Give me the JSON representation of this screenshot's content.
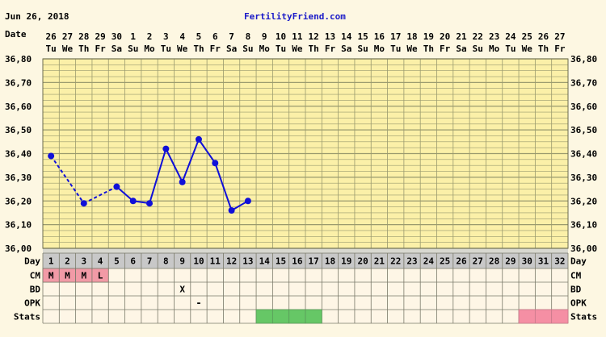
{
  "header": {
    "date": "Jun 26, 2018",
    "brand": "FertilityFriend.com"
  },
  "row_labels": {
    "date": "Date",
    "day": "Day",
    "cm": "CM",
    "bd": "BD",
    "opk": "OPK",
    "stats": "Stats"
  },
  "colors": {
    "background": "#fdf7e2",
    "chart_fill": "#fbf0a8",
    "grid_line": "#9a9a6e",
    "curve": "#1010d8",
    "cm_fill": "#f29aa6",
    "stats_green": "#66c766",
    "stats_pink": "#f58fa4",
    "day_row_fill": "#c8c8c8",
    "lower_rows_fill": "#fef6e6",
    "brand_color": "#1a1ac8"
  },
  "chart_data": {
    "type": "line",
    "y_ticks": [
      "36,80",
      "36,70",
      "36,60",
      "36,50",
      "36,40",
      "36,30",
      "36,20",
      "36,10",
      "36,00"
    ],
    "ylim": [
      36.0,
      36.8
    ],
    "dates": [
      "26",
      "27",
      "28",
      "29",
      "30",
      "1",
      "2",
      "3",
      "4",
      "5",
      "6",
      "7",
      "8",
      "9",
      "10",
      "11",
      "12",
      "13",
      "14",
      "15",
      "16",
      "17",
      "18",
      "19",
      "20",
      "21",
      "22",
      "23",
      "24",
      "25",
      "26",
      "27"
    ],
    "weekdays": [
      "Tu",
      "We",
      "Th",
      "Fr",
      "Sa",
      "Su",
      "Mo",
      "Tu",
      "We",
      "Th",
      "Fr",
      "Sa",
      "Su",
      "Mo",
      "Tu",
      "We",
      "Th",
      "Fr",
      "Sa",
      "Su",
      "Mo",
      "Tu",
      "We",
      "Th",
      "Fr",
      "Sa",
      "Su",
      "Mo",
      "Tu",
      "We",
      "Th",
      "Fr"
    ],
    "cycle_days": [
      1,
      2,
      3,
      4,
      5,
      6,
      7,
      8,
      9,
      10,
      11,
      12,
      13,
      14,
      15,
      16,
      17,
      18,
      19,
      20,
      21,
      22,
      23,
      24,
      25,
      26,
      27,
      28,
      29,
      30,
      31,
      32
    ],
    "temperatures": [
      {
        "day": 1,
        "value": 36.39
      },
      {
        "day": 3,
        "value": 36.19
      },
      {
        "day": 5,
        "value": 36.26
      },
      {
        "day": 6,
        "value": 36.2
      },
      {
        "day": 7,
        "value": 36.19
      },
      {
        "day": 8,
        "value": 36.42
      },
      {
        "day": 9,
        "value": 36.28
      },
      {
        "day": 10,
        "value": 36.46
      },
      {
        "day": 11,
        "value": 36.36
      },
      {
        "day": 12,
        "value": 36.16
      },
      {
        "day": 13,
        "value": 36.2
      }
    ],
    "dashed_segments": [
      [
        1,
        3
      ],
      [
        3,
        5
      ]
    ],
    "cm": [
      {
        "day": 1,
        "label": "M"
      },
      {
        "day": 2,
        "label": "M"
      },
      {
        "day": 3,
        "label": "M"
      },
      {
        "day": 4,
        "label": "L"
      }
    ],
    "bd": [
      {
        "day": 9,
        "label": "X"
      }
    ],
    "opk": [
      {
        "day": 10,
        "label": "-"
      }
    ],
    "stats_green_days": [
      14,
      15,
      16,
      17
    ],
    "stats_pink_days": [
      30,
      31,
      32
    ]
  }
}
